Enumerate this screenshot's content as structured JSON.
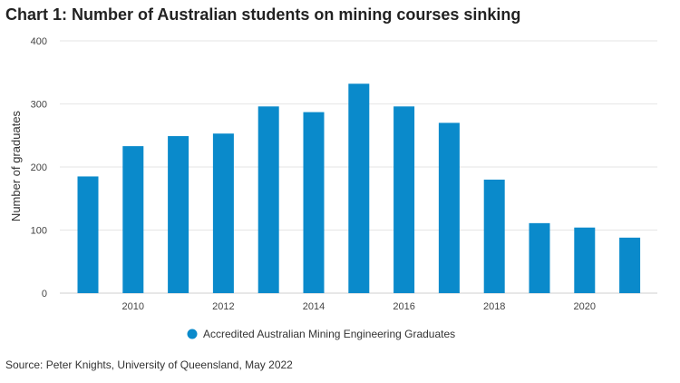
{
  "title": "Chart 1: Number of Australian students on mining courses sinking",
  "source": "Source: Peter Knights, University of Queensland, May 2022",
  "chart_data": {
    "type": "bar",
    "x": [
      2009,
      2010,
      2011,
      2012,
      2013,
      2014,
      2015,
      2016,
      2017,
      2018,
      2019,
      2020,
      2021
    ],
    "series": [
      {
        "name": "Accredited Australian Mining Engineering Graduates",
        "values": [
          185,
          233,
          249,
          253,
          296,
          287,
          332,
          296,
          270,
          180,
          111,
          104,
          88
        ],
        "color": "#0a8acb"
      }
    ],
    "xticks": [
      "2010",
      "2012",
      "2014",
      "2016",
      "2018",
      "2020"
    ],
    "yticks": [
      "0",
      "100",
      "200",
      "300",
      "400"
    ],
    "ylabel": "Number of graduates",
    "xlabel": "",
    "ylim": [
      0,
      400
    ],
    "grid": true,
    "legend": "bottom-center"
  }
}
